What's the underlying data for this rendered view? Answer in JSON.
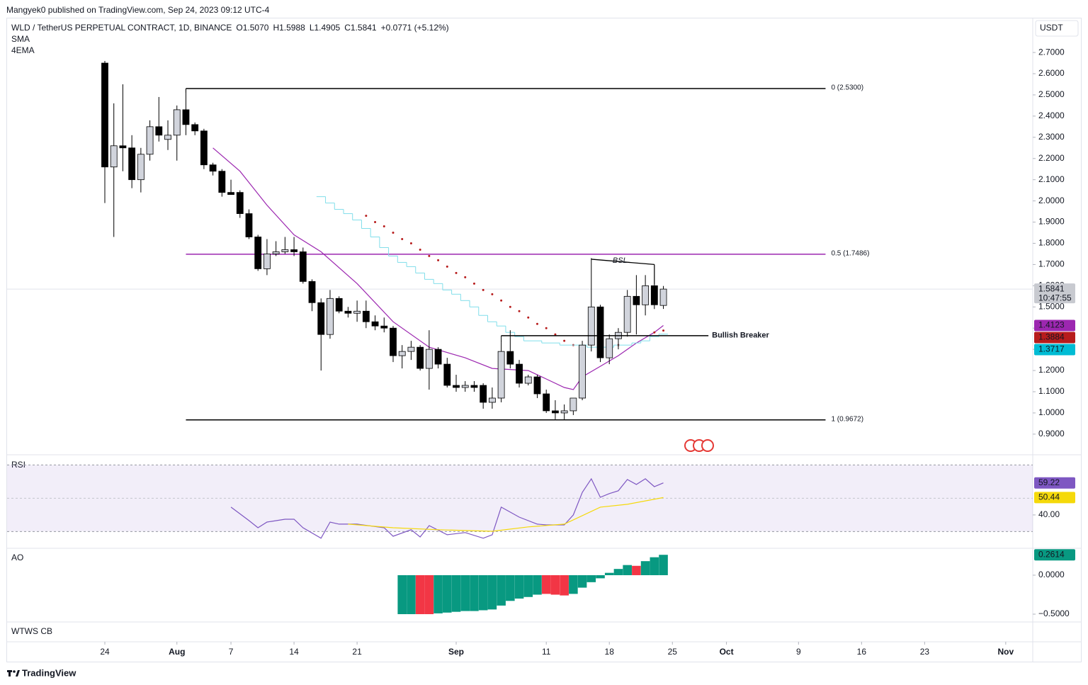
{
  "header": {
    "published": "Mangyek0 published on TradingView.com, Sep 24, 2023 09:12 UTC-4",
    "brand": "TradingView"
  },
  "chart_data": [
    {
      "type": "candlestick",
      "title": "WLD / TetherUS PERPETUAL CONTRACT, 1D, BINANCE",
      "ohlc_labels": [
        "O1.5070",
        "H1.5988",
        "L1.4905",
        "C1.5841",
        "+0.0771 (+5.12%)"
      ],
      "indicators": [
        "SMA",
        "4EMA"
      ],
      "currency": "USDT",
      "countdown": "10:47:55",
      "up_color": "#d1d4dc",
      "down_color": "#000000",
      "x": [
        0,
        1,
        2,
        3,
        4,
        5,
        6,
        7,
        8,
        9,
        10,
        11,
        12,
        13,
        14,
        15,
        16,
        17,
        18,
        19,
        20,
        21,
        22,
        23,
        24,
        25,
        26,
        27,
        28,
        29,
        30,
        31,
        32,
        33,
        34,
        35,
        36,
        37,
        38,
        39,
        40,
        41,
        42,
        43,
        44,
        45,
        46,
        47,
        48,
        49,
        50,
        51,
        52,
        53,
        54,
        55,
        56,
        57,
        58,
        59,
        60,
        61,
        62
      ],
      "open": [
        2.65,
        2.16,
        2.26,
        2.25,
        2.1,
        2.22,
        2.35,
        2.29,
        2.31,
        2.43,
        2.36,
        2.33,
        2.17,
        2.14,
        2.04,
        2.04,
        1.94,
        1.83,
        1.68,
        1.75,
        1.76,
        1.77,
        1.76,
        1.62,
        1.52,
        1.37,
        1.54,
        1.48,
        1.47,
        1.48,
        1.43,
        1.41,
        1.4,
        1.27,
        1.29,
        1.31,
        1.21,
        1.3,
        1.23,
        1.13,
        1.12,
        1.13,
        1.13,
        1.05,
        1.07,
        1.29,
        1.23,
        1.14,
        1.17,
        1.09,
        1.01,
        1.0,
        1.01,
        1.07,
        1.32,
        1.5,
        1.26,
        1.35,
        1.38,
        1.55,
        1.51,
        1.6,
        1.507
      ],
      "high": [
        2.66,
        2.46,
        2.55,
        2.31,
        2.25,
        2.38,
        2.49,
        2.38,
        2.45,
        2.53,
        2.37,
        2.34,
        2.18,
        2.15,
        2.1,
        2.05,
        1.96,
        1.84,
        1.82,
        1.81,
        1.83,
        1.83,
        1.78,
        1.63,
        1.54,
        1.58,
        1.55,
        1.5,
        1.53,
        1.53,
        1.46,
        1.45,
        1.41,
        1.32,
        1.34,
        1.32,
        1.39,
        1.31,
        1.26,
        1.18,
        1.15,
        1.15,
        1.14,
        1.12,
        1.34,
        1.39,
        1.25,
        1.18,
        1.18,
        1.11,
        1.06,
        1.04,
        1.07,
        1.34,
        1.73,
        1.51,
        1.37,
        1.4,
        1.58,
        1.65,
        1.65,
        1.7,
        1.5988
      ],
      "low": [
        1.99,
        1.83,
        2.14,
        2.06,
        2.04,
        2.19,
        2.28,
        2.24,
        2.19,
        2.31,
        2.31,
        2.15,
        2.12,
        2.02,
        2.03,
        1.92,
        1.82,
        1.67,
        1.65,
        1.74,
        1.75,
        1.74,
        1.61,
        1.48,
        1.2,
        1.35,
        1.47,
        1.45,
        1.43,
        1.4,
        1.39,
        1.38,
        1.24,
        1.21,
        1.25,
        1.2,
        1.11,
        1.21,
        1.12,
        1.1,
        1.1,
        1.1,
        1.02,
        1.02,
        1.05,
        1.21,
        1.12,
        1.13,
        1.07,
        1.0,
        0.97,
        0.97,
        0.99,
        1.06,
        1.29,
        1.24,
        1.23,
        1.3,
        1.36,
        1.37,
        1.46,
        1.49,
        1.4905
      ],
      "close": [
        2.16,
        2.26,
        2.25,
        2.1,
        2.22,
        2.35,
        2.31,
        2.31,
        2.43,
        2.36,
        2.33,
        2.17,
        2.14,
        2.04,
        2.03,
        1.94,
        1.83,
        1.68,
        1.75,
        1.76,
        1.77,
        1.76,
        1.62,
        1.52,
        1.37,
        1.54,
        1.48,
        1.47,
        1.48,
        1.43,
        1.41,
        1.4,
        1.27,
        1.29,
        1.31,
        1.21,
        1.3,
        1.23,
        1.13,
        1.12,
        1.13,
        1.12,
        1.05,
        1.07,
        1.29,
        1.23,
        1.14,
        1.17,
        1.09,
        1.01,
        1.0,
        1.01,
        1.07,
        1.32,
        1.5,
        1.26,
        1.35,
        1.38,
        1.55,
        1.51,
        1.6,
        1.51,
        1.5841
      ],
      "xlim": [
        -10.85,
        103
      ],
      "xticks": [
        {
          "value": 0,
          "label": "24"
        },
        {
          "value": 8,
          "label": "Aug"
        },
        {
          "value": 14,
          "label": "7"
        },
        {
          "value": 21,
          "label": "14"
        },
        {
          "value": 28,
          "label": "21"
        },
        {
          "value": 39,
          "label": "Sep"
        },
        {
          "value": 49,
          "label": "11"
        },
        {
          "value": 56,
          "label": "18"
        },
        {
          "value": 63,
          "label": "25"
        },
        {
          "value": 69,
          "label": "Oct"
        },
        {
          "value": 77,
          "label": "9"
        },
        {
          "value": 84,
          "label": "16"
        },
        {
          "value": 91,
          "label": "23"
        },
        {
          "value": 100,
          "label": "Nov"
        }
      ],
      "ylim": [
        0.806,
        2.864
      ],
      "yticks": [
        {
          "value": 0.9,
          "label": "0.9000"
        },
        {
          "value": 1.0,
          "label": "1.0000"
        },
        {
          "value": 1.1,
          "label": "1.1000"
        },
        {
          "value": 1.2,
          "label": "1.2000"
        },
        {
          "value": 1.3,
          "label": "1.3000"
        },
        {
          "value": 1.4,
          "label": "1.4000"
        },
        {
          "value": 1.5,
          "label": "1.5000"
        },
        {
          "value": 1.6,
          "label": "1.6000"
        },
        {
          "value": 1.7,
          "label": "1.7000"
        },
        {
          "value": 1.8,
          "label": "1.8000"
        },
        {
          "value": 1.9,
          "label": "1.9000"
        },
        {
          "value": 2.0,
          "label": "2.0000"
        },
        {
          "value": 2.1,
          "label": "2.1000"
        },
        {
          "value": 2.2,
          "label": "2.2000"
        },
        {
          "value": 2.3,
          "label": "2.3000"
        },
        {
          "value": 2.4,
          "label": "2.4000"
        },
        {
          "value": 2.5,
          "label": "2.5000"
        },
        {
          "value": 2.6,
          "label": "2.6000"
        },
        {
          "value": 2.7,
          "label": "2.7000"
        }
      ],
      "overlays": [
        {
          "style": "line",
          "color": "#9c27b0",
          "x": [
            12,
            15,
            18,
            21,
            24,
            28,
            32,
            36,
            40,
            43,
            47,
            49,
            51,
            52,
            53,
            55,
            57,
            59,
            61,
            62
          ],
          "values": [
            2.25,
            2.14,
            1.98,
            1.84,
            1.76,
            1.61,
            1.43,
            1.31,
            1.26,
            1.21,
            1.2,
            1.16,
            1.12,
            1.11,
            1.17,
            1.22,
            1.27,
            1.33,
            1.38,
            1.4123
          ]
        },
        {
          "style": "dots",
          "color": "#b71c1c",
          "x": [
            29,
            30,
            31,
            32,
            33,
            34,
            35,
            36,
            37,
            38,
            39,
            40,
            41,
            42,
            43,
            44,
            45,
            46,
            47,
            48,
            49,
            50,
            51,
            52,
            57,
            61,
            62
          ],
          "values": [
            1.93,
            1.9,
            1.88,
            1.85,
            1.82,
            1.8,
            1.77,
            1.74,
            1.72,
            1.69,
            1.66,
            1.64,
            1.61,
            1.58,
            1.56,
            1.53,
            1.5,
            1.48,
            1.45,
            1.42,
            1.4,
            1.37,
            1.34,
            1.32,
            1.32,
            1.38,
            1.3884
          ]
        },
        {
          "style": "step",
          "color": "#80deea",
          "x": [
            24,
            25,
            26,
            27,
            28,
            29,
            30,
            31,
            32,
            33,
            34,
            35,
            36,
            37,
            38,
            39,
            40,
            41,
            42,
            43,
            44,
            45,
            46,
            47,
            48,
            49,
            50,
            51,
            52,
            53,
            54,
            55,
            56,
            57,
            58,
            59,
            60,
            61,
            62
          ],
          "values": [
            2.02,
            1.99,
            1.96,
            1.94,
            1.91,
            1.87,
            1.83,
            1.78,
            1.74,
            1.71,
            1.69,
            1.66,
            1.63,
            1.61,
            1.58,
            1.56,
            1.53,
            1.5,
            1.46,
            1.43,
            1.41,
            1.38,
            1.36,
            1.34,
            1.34,
            1.33,
            1.33,
            1.32,
            1.32,
            1.32,
            1.31,
            1.31,
            1.31,
            1.32,
            1.32,
            1.33,
            1.34,
            1.36,
            1.3717
          ],
          "tag_color": "#00bcd4"
        }
      ],
      "levels": [
        {
          "value": 2.53,
          "label": "0 (2.5300)",
          "color": "#000000",
          "x": [
            9,
            80
          ]
        },
        {
          "value": 1.7486,
          "label": "0.5 (1.7486)",
          "color": "#9c27b0",
          "x": [
            9,
            80
          ]
        },
        {
          "value": 0.9672,
          "label": "1 (0.9672)",
          "color": "#000000",
          "x": [
            9,
            80
          ]
        }
      ],
      "breaker": {
        "text": "Bullish Breaker",
        "value": 1.3645,
        "x": [
          44,
          67
        ],
        "color": "#00796b"
      },
      "bsl": {
        "text": "BSL",
        "x": [
          54,
          61
        ],
        "values": [
          1.725,
          1.7
        ]
      }
    },
    {
      "type": "line",
      "title": "RSI",
      "ylim": [
        20.4,
        75.7
      ],
      "yticks": [
        {
          "value": 40,
          "label": "40.00"
        }
      ],
      "bands": [
        30,
        70
      ],
      "midline": 50,
      "series": [
        {
          "color": "#7e57c2",
          "x": [
            14,
            16,
            17,
            18,
            20,
            21,
            22,
            24,
            25,
            26,
            28,
            31,
            32,
            34,
            35,
            36,
            38,
            40,
            42,
            43,
            44,
            46,
            48,
            49,
            51,
            52,
            53,
            54,
            55,
            56,
            57,
            58,
            59,
            60,
            61,
            62
          ],
          "values": [
            44.7,
            36.6,
            32.3,
            35.7,
            37.4,
            37.4,
            32.3,
            26.0,
            35.7,
            34.5,
            34.5,
            32.3,
            27.2,
            31.1,
            26.8,
            33.6,
            28.1,
            29.4,
            26.0,
            28.1,
            44.7,
            38.7,
            34.5,
            34.0,
            34.0,
            40.0,
            53.6,
            61.7,
            50.6,
            52.8,
            54.5,
            61.3,
            58.3,
            61.7,
            57.0,
            59.22
          ]
        },
        {
          "color": "#f5d90a",
          "x": [
            27,
            32,
            37,
            43,
            47,
            51,
            55,
            58,
            62
          ],
          "values": [
            34.5,
            32.3,
            31.1,
            30.2,
            32.8,
            34.5,
            44.7,
            46.4,
            50.44
          ]
        }
      ]
    },
    {
      "type": "bar",
      "title": "AO",
      "ylim": [
        -0.591,
        0.336
      ],
      "yticks": [
        {
          "value": 0,
          "label": "0.0000"
        },
        {
          "value": -0.5,
          "label": "−0.5000"
        }
      ],
      "x": [
        33,
        34,
        35,
        36,
        37,
        38,
        39,
        40,
        41,
        42,
        43,
        44,
        45,
        46,
        47,
        48,
        49,
        50,
        51,
        52,
        53,
        54,
        55,
        56,
        57,
        58,
        59,
        60,
        61,
        62
      ],
      "values": [
        -0.5,
        -0.5,
        -0.5,
        -0.5,
        -0.49,
        -0.48,
        -0.47,
        -0.46,
        -0.46,
        -0.45,
        -0.44,
        -0.39,
        -0.33,
        -0.3,
        -0.28,
        -0.25,
        -0.24,
        -0.25,
        -0.26,
        -0.24,
        -0.16,
        -0.09,
        -0.04,
        0.03,
        0.08,
        0.13,
        0.12,
        0.18,
        0.23,
        0.2614
      ],
      "colors": [
        "#089981",
        "#089981",
        "#f23645",
        "#f23645",
        "#089981",
        "#089981",
        "#089981",
        "#089981",
        "#089981",
        "#089981",
        "#089981",
        "#089981",
        "#089981",
        "#089981",
        "#089981",
        "#089981",
        "#f23645",
        "#f23645",
        "#f23645",
        "#089981",
        "#089981",
        "#089981",
        "#089981",
        "#089981",
        "#089981",
        "#089981",
        "#f23645",
        "#089981",
        "#089981",
        "#089981"
      ]
    },
    {
      "type": "empty",
      "title": "WTWS CB"
    }
  ]
}
